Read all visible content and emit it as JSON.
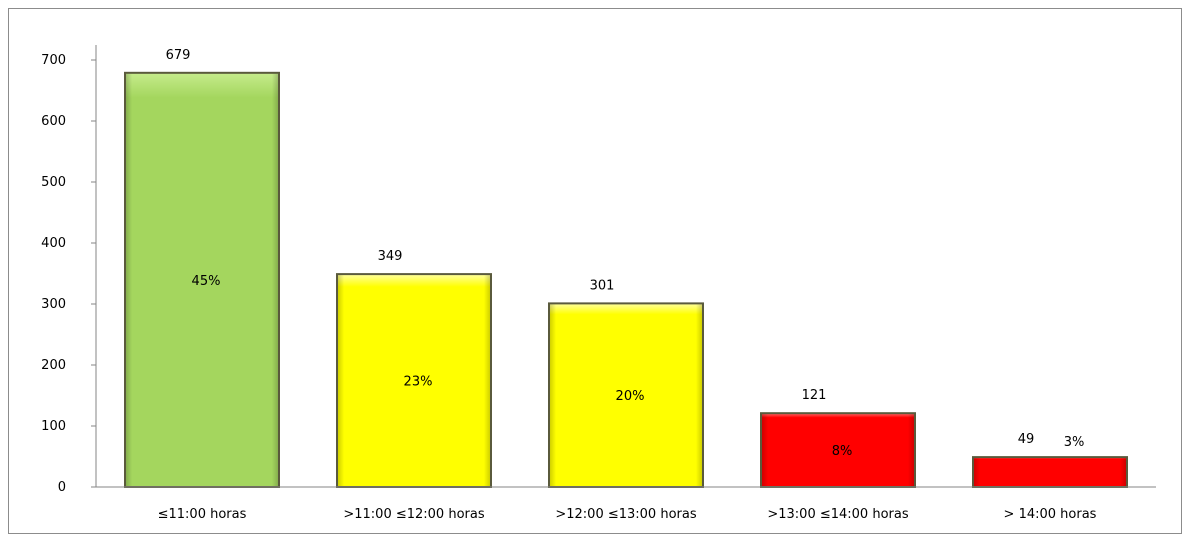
{
  "chart_data": {
    "type": "bar",
    "title": "",
    "xlabel": "",
    "ylabel": "",
    "ylim": [
      0,
      700
    ],
    "yticks": [
      0,
      100,
      200,
      300,
      400,
      500,
      600,
      700
    ],
    "grid": false,
    "legend": "none",
    "categories": [
      "≤11:00 horas",
      ">11:00 ≤12:00 horas",
      ">12:00 ≤13:00 horas",
      ">13:00 ≤14:00 horas",
      "> 14:00 horas"
    ],
    "values": [
      679,
      349,
      301,
      121,
      49
    ],
    "value_labels": [
      "679",
      "349",
      "301",
      "121",
      "49"
    ],
    "percent_labels": [
      "45%",
      "23%",
      "20%",
      "8%",
      "3%"
    ],
    "bar_colors": [
      "#a4d65e",
      "#ffff00",
      "#ffff00",
      "#ff0000",
      "#ff0000"
    ],
    "bar_highlight_colors": [
      "#c6ec8c",
      "#ffffa0",
      "#ffffa0",
      "#ff6a6a",
      "#ff6a6a"
    ],
    "bar_border_color": "#5a5a3c"
  }
}
